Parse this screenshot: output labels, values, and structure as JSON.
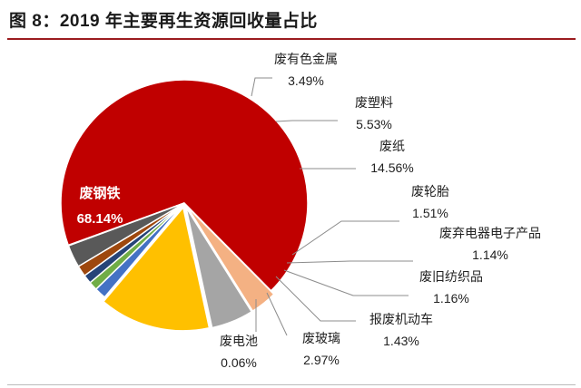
{
  "title": "图 8：2019 年主要再生资源回收量占比",
  "chart_data": {
    "type": "pie",
    "slices": [
      {
        "name": "废钢铁",
        "label": "68.14%",
        "value": 68.14,
        "color": "#c00000"
      },
      {
        "name": "废有色金属",
        "label": "3.49%",
        "value": 3.49,
        "color": "#f4b183"
      },
      {
        "name": "废塑料",
        "label": "5.53%",
        "value": 5.53,
        "color": "#a5a5a5"
      },
      {
        "name": "废纸",
        "label": "14.56%",
        "value": 14.56,
        "color": "#ffc000"
      },
      {
        "name": "废轮胎",
        "label": "1.51%",
        "value": 1.51,
        "color": "#4472c4"
      },
      {
        "name": "废弃电器电子产品",
        "label": "1.14%",
        "value": 1.14,
        "color": "#70ad47"
      },
      {
        "name": "废旧纺织品",
        "label": "1.16%",
        "value": 1.16,
        "color": "#264478"
      },
      {
        "name": "报废机动车",
        "label": "1.43%",
        "value": 1.43,
        "color": "#9e480e"
      },
      {
        "name": "废玻璃",
        "label": "2.97%",
        "value": 2.97,
        "color": "#595959"
      },
      {
        "name": "废电池",
        "label": "0.06%",
        "value": 0.06,
        "color": "#7f6000"
      }
    ]
  }
}
